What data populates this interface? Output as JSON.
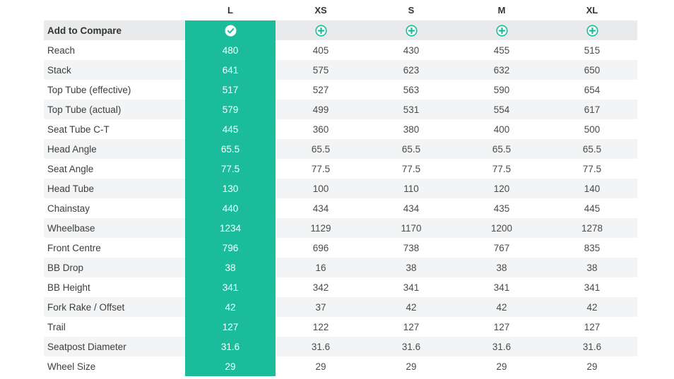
{
  "columns": {
    "selected": "L",
    "sizes": [
      "XS",
      "S",
      "M",
      "XL"
    ]
  },
  "compare": {
    "label": "Add to Compare",
    "selected_icon": "check-circle-icon",
    "add_icon": "plus-circle-icon"
  },
  "colors": {
    "accent": "#1abc9c"
  },
  "rows": [
    {
      "label": "Reach",
      "L": "480",
      "XS": "405",
      "S": "430",
      "M": "455",
      "XL": "515"
    },
    {
      "label": "Stack",
      "L": "641",
      "XS": "575",
      "S": "623",
      "M": "632",
      "XL": "650"
    },
    {
      "label": "Top Tube (effective)",
      "L": "517",
      "XS": "527",
      "S": "563",
      "M": "590",
      "XL": "654"
    },
    {
      "label": "Top Tube (actual)",
      "L": "579",
      "XS": "499",
      "S": "531",
      "M": "554",
      "XL": "617"
    },
    {
      "label": "Seat Tube C-T",
      "L": "445",
      "XS": "360",
      "S": "380",
      "M": "400",
      "XL": "500"
    },
    {
      "label": "Head Angle",
      "L": "65.5",
      "XS": "65.5",
      "S": "65.5",
      "M": "65.5",
      "XL": "65.5"
    },
    {
      "label": "Seat Angle",
      "L": "77.5",
      "XS": "77.5",
      "S": "77.5",
      "M": "77.5",
      "XL": "77.5"
    },
    {
      "label": "Head Tube",
      "L": "130",
      "XS": "100",
      "S": "110",
      "M": "120",
      "XL": "140"
    },
    {
      "label": "Chainstay",
      "L": "440",
      "XS": "434",
      "S": "434",
      "M": "435",
      "XL": "445"
    },
    {
      "label": "Wheelbase",
      "L": "1234",
      "XS": "1129",
      "S": "1170",
      "M": "1200",
      "XL": "1278"
    },
    {
      "label": "Front Centre",
      "L": "796",
      "XS": "696",
      "S": "738",
      "M": "767",
      "XL": "835"
    },
    {
      "label": "BB Drop",
      "L": "38",
      "XS": "16",
      "S": "38",
      "M": "38",
      "XL": "38"
    },
    {
      "label": "BB Height",
      "L": "341",
      "XS": "342",
      "S": "341",
      "M": "341",
      "XL": "341"
    },
    {
      "label": "Fork Rake / Offset",
      "L": "42",
      "XS": "37",
      "S": "42",
      "M": "42",
      "XL": "42"
    },
    {
      "label": "Trail",
      "L": "127",
      "XS": "122",
      "S": "127",
      "M": "127",
      "XL": "127"
    },
    {
      "label": "Seatpost Diameter",
      "L": "31.6",
      "XS": "31.6",
      "S": "31.6",
      "M": "31.6",
      "XL": "31.6"
    },
    {
      "label": "Wheel Size",
      "L": "29",
      "XS": "29",
      "S": "29",
      "M": "29",
      "XL": "29"
    }
  ]
}
